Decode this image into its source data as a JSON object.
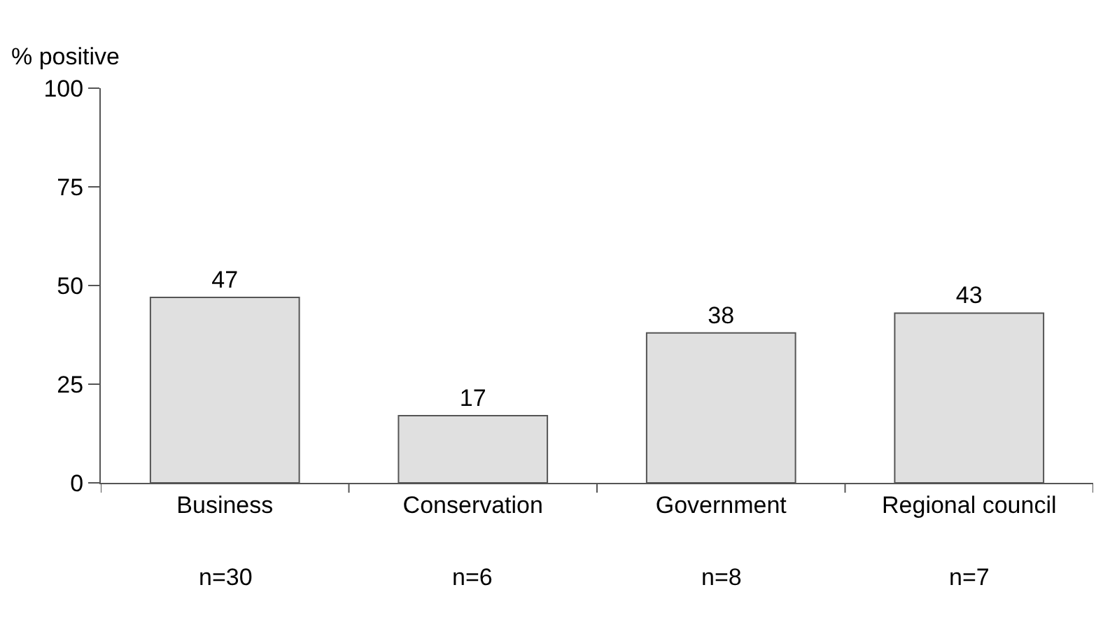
{
  "chart_data": {
    "type": "bar",
    "ylabel": "% positive",
    "categories": [
      "Business",
      "Conservation",
      "Government",
      "Regional council"
    ],
    "values": [
      47,
      17,
      38,
      43
    ],
    "color": "#e0e0e0",
    "ylim": [
      0,
      100
    ],
    "yticks": [
      0,
      25,
      50,
      75,
      100
    ],
    "legend": false,
    "data_labels": true,
    "annotations": [
      "n=30",
      "n=6",
      "n=8",
      "n=7"
    ]
  }
}
